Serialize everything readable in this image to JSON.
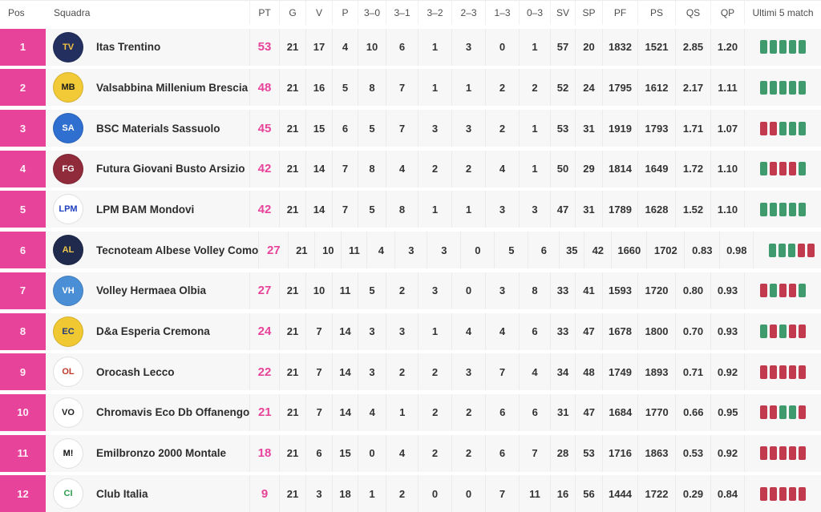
{
  "colors": {
    "accent_pink": "#e8439a",
    "win_green": "#3f9a6e",
    "loss_red": "#c13a4d",
    "row_bg": "#f7f7f8"
  },
  "header": {
    "columns": [
      {
        "key": "pos",
        "label": "Pos"
      },
      {
        "key": "team",
        "label": "Squadra"
      },
      {
        "key": "pt",
        "label": "PT"
      },
      {
        "key": "g",
        "label": "G"
      },
      {
        "key": "v",
        "label": "V"
      },
      {
        "key": "p",
        "label": "P"
      },
      {
        "key": "s30",
        "label": "3–0"
      },
      {
        "key": "s31",
        "label": "3–1"
      },
      {
        "key": "s32",
        "label": "3–2"
      },
      {
        "key": "s23",
        "label": "2–3"
      },
      {
        "key": "s13",
        "label": "1–3"
      },
      {
        "key": "s03",
        "label": "0–3"
      },
      {
        "key": "sv",
        "label": "SV"
      },
      {
        "key": "sp",
        "label": "SP"
      },
      {
        "key": "pf",
        "label": "PF"
      },
      {
        "key": "ps",
        "label": "PS"
      },
      {
        "key": "qs",
        "label": "QS"
      },
      {
        "key": "qp",
        "label": "QP"
      },
      {
        "key": "last5",
        "label": "Ultimi 5 match"
      }
    ]
  },
  "rows": [
    {
      "pos": "1",
      "team": "Itas Trentino",
      "logo": {
        "bg": "#232f5e",
        "fg": "#f5c343",
        "text": "TV"
      },
      "pt": "53",
      "stats": [
        "21",
        "17",
        "4",
        "10",
        "6",
        "1",
        "3",
        "0",
        "1",
        "57",
        "20",
        "1832",
        "1521",
        "2.85",
        "1.20"
      ],
      "last5": [
        "W",
        "W",
        "W",
        "W",
        "W"
      ]
    },
    {
      "pos": "2",
      "team": "Valsabbina Millenium Brescia",
      "logo": {
        "bg": "#f2c936",
        "fg": "#1a1a1a",
        "text": "MB"
      },
      "pt": "48",
      "stats": [
        "21",
        "16",
        "5",
        "8",
        "7",
        "1",
        "1",
        "2",
        "2",
        "52",
        "24",
        "1795",
        "1612",
        "2.17",
        "1.11"
      ],
      "last5": [
        "W",
        "W",
        "W",
        "W",
        "W"
      ]
    },
    {
      "pos": "3",
      "team": "BSC Materials Sassuolo",
      "logo": {
        "bg": "#2f6fd0",
        "fg": "#ffffff",
        "text": "SA"
      },
      "pt": "45",
      "stats": [
        "21",
        "15",
        "6",
        "5",
        "7",
        "3",
        "3",
        "2",
        "1",
        "53",
        "31",
        "1919",
        "1793",
        "1.71",
        "1.07"
      ],
      "last5": [
        "L",
        "L",
        "W",
        "W",
        "W"
      ]
    },
    {
      "pos": "4",
      "team": "Futura Giovani Busto Arsizio",
      "logo": {
        "bg": "#8f2b3a",
        "fg": "#ffffff",
        "text": "FG"
      },
      "pt": "42",
      "stats": [
        "21",
        "14",
        "7",
        "8",
        "4",
        "2",
        "2",
        "4",
        "1",
        "50",
        "29",
        "1814",
        "1649",
        "1.72",
        "1.10"
      ],
      "last5": [
        "W",
        "L",
        "L",
        "L",
        "W"
      ]
    },
    {
      "pos": "5",
      "team": "LPM BAM Mondovi",
      "logo": {
        "bg": "#ffffff",
        "fg": "#1f3fbf",
        "text": "LPM"
      },
      "pt": "42",
      "stats": [
        "21",
        "14",
        "7",
        "5",
        "8",
        "1",
        "1",
        "3",
        "3",
        "47",
        "31",
        "1789",
        "1628",
        "1.52",
        "1.10"
      ],
      "last5": [
        "W",
        "W",
        "W",
        "W",
        "W"
      ]
    },
    {
      "pos": "6",
      "team": "Tecnoteam Albese Volley Como",
      "logo": {
        "bg": "#1f2a4d",
        "fg": "#f0c94a",
        "text": "AL"
      },
      "pt": "27",
      "stats": [
        "21",
        "10",
        "11",
        "4",
        "3",
        "3",
        "0",
        "5",
        "6",
        "35",
        "42",
        "1660",
        "1702",
        "0.83",
        "0.98"
      ],
      "last5": [
        "W",
        "W",
        "W",
        "L",
        "L"
      ]
    },
    {
      "pos": "7",
      "team": "Volley Hermaea Olbia",
      "logo": {
        "bg": "#4a8fd6",
        "fg": "#ffffff",
        "text": "VH"
      },
      "pt": "27",
      "stats": [
        "21",
        "10",
        "11",
        "5",
        "2",
        "3",
        "0",
        "3",
        "8",
        "33",
        "41",
        "1593",
        "1720",
        "0.80",
        "0.93"
      ],
      "last5": [
        "L",
        "W",
        "L",
        "L",
        "W"
      ]
    },
    {
      "pos": "8",
      "team": "D&a Esperia Cremona",
      "logo": {
        "bg": "#f0c832",
        "fg": "#233a7a",
        "text": "EC"
      },
      "pt": "24",
      "stats": [
        "21",
        "7",
        "14",
        "3",
        "3",
        "1",
        "4",
        "4",
        "6",
        "33",
        "47",
        "1678",
        "1800",
        "0.70",
        "0.93"
      ],
      "last5": [
        "W",
        "L",
        "W",
        "L",
        "L"
      ]
    },
    {
      "pos": "9",
      "team": "Orocash Lecco",
      "logo": {
        "bg": "#ffffff",
        "fg": "#c0392b",
        "text": "OL"
      },
      "pt": "22",
      "stats": [
        "21",
        "7",
        "14",
        "3",
        "2",
        "2",
        "3",
        "7",
        "4",
        "34",
        "48",
        "1749",
        "1893",
        "0.71",
        "0.92"
      ],
      "last5": [
        "L",
        "L",
        "L",
        "L",
        "L"
      ]
    },
    {
      "pos": "10",
      "team": "Chromavis Eco Db Offanengo",
      "logo": {
        "bg": "#ffffff",
        "fg": "#222222",
        "text": "VO"
      },
      "pt": "21",
      "stats": [
        "21",
        "7",
        "14",
        "4",
        "1",
        "2",
        "2",
        "6",
        "6",
        "31",
        "47",
        "1684",
        "1770",
        "0.66",
        "0.95"
      ],
      "last5": [
        "L",
        "L",
        "W",
        "W",
        "L"
      ]
    },
    {
      "pos": "11",
      "team": "Emilbronzo 2000 Montale",
      "logo": {
        "bg": "#ffffff",
        "fg": "#111111",
        "text": "M!"
      },
      "pt": "18",
      "stats": [
        "21",
        "6",
        "15",
        "0",
        "4",
        "2",
        "2",
        "6",
        "7",
        "28",
        "53",
        "1716",
        "1863",
        "0.53",
        "0.92"
      ],
      "last5": [
        "L",
        "L",
        "L",
        "L",
        "L"
      ]
    },
    {
      "pos": "12",
      "team": "Club Italia",
      "logo": {
        "bg": "#ffffff",
        "fg": "#2e9e4f",
        "text": "CI"
      },
      "pt": "9",
      "stats": [
        "21",
        "3",
        "18",
        "1",
        "2",
        "0",
        "0",
        "7",
        "11",
        "16",
        "56",
        "1444",
        "1722",
        "0.29",
        "0.84"
      ],
      "last5": [
        "L",
        "L",
        "L",
        "L",
        "L"
      ]
    }
  ]
}
